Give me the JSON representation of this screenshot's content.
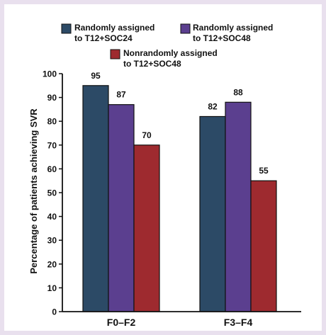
{
  "chart_data": {
    "type": "bar",
    "title": "",
    "xlabel": "",
    "ylabel": "Percentage of patients achieving SVR",
    "ylim": [
      0,
      100
    ],
    "yticks": [
      0,
      10,
      20,
      30,
      40,
      50,
      60,
      70,
      80,
      90,
      100
    ],
    "categories": [
      "F0–F2",
      "F3–F4"
    ],
    "legend_position": "top",
    "series": [
      {
        "name_lines": [
          "Randomly assigned",
          "to T12+SOC24"
        ],
        "color": "#2c4a66",
        "values": [
          95,
          82
        ],
        "labels": [
          "95",
          "82"
        ]
      },
      {
        "name_lines": [
          "Randomly assigned",
          "to T12+SOC48"
        ],
        "color": "#5b3f8f",
        "values": [
          87,
          88
        ],
        "labels": [
          "87",
          "88"
        ]
      },
      {
        "name_lines": [
          "Nonrandomly assigned",
          "to T12+SOC48"
        ],
        "color": "#9e2a2f",
        "values": [
          70,
          55
        ],
        "labels": [
          "70",
          "55"
        ]
      }
    ]
  }
}
